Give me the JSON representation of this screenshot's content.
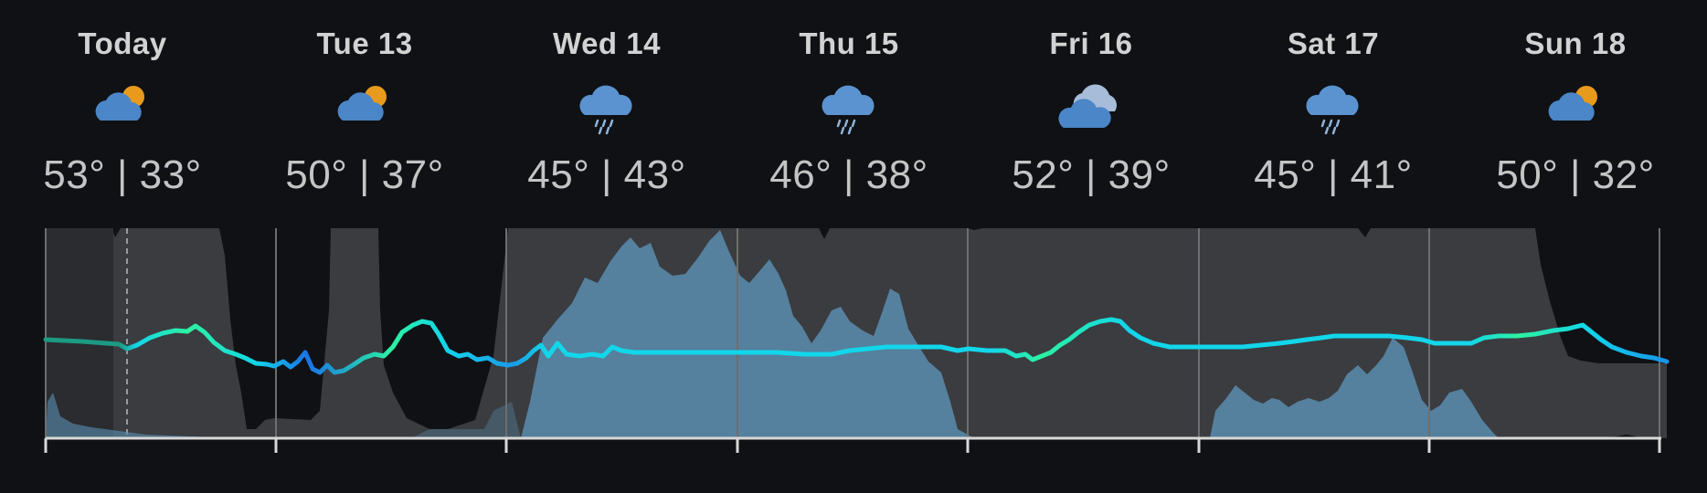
{
  "colors": {
    "background": "#0f1115",
    "cloud_band": "#3a3c40",
    "precip_fill": "#5b8fb3",
    "temp_cold": "#1a73e8",
    "temp_cool": "#12d6ea",
    "temp_mild": "#2cf2a0",
    "temp_past": "#1c9a82"
  },
  "forecast": {
    "days": [
      {
        "label": "Today",
        "icon": "partly-cloudy-icon",
        "temps": "53° | 33°"
      },
      {
        "label": "Tue 13",
        "icon": "partly-cloudy-icon",
        "temps": "50° | 37°"
      },
      {
        "label": "Wed 14",
        "icon": "rain-cloud-icon",
        "temps": "45° | 43°"
      },
      {
        "label": "Thu 15",
        "icon": "rain-cloud-icon",
        "temps": "46° | 38°"
      },
      {
        "label": "Fri 16",
        "icon": "cloudy-icon",
        "temps": "52° | 39°"
      },
      {
        "label": "Sat 17",
        "icon": "rain-cloud-icon",
        "temps": "45° | 41°"
      },
      {
        "label": "Sun 18",
        "icon": "partly-cloudy-icon",
        "temps": "50° | 32°"
      }
    ]
  }
}
